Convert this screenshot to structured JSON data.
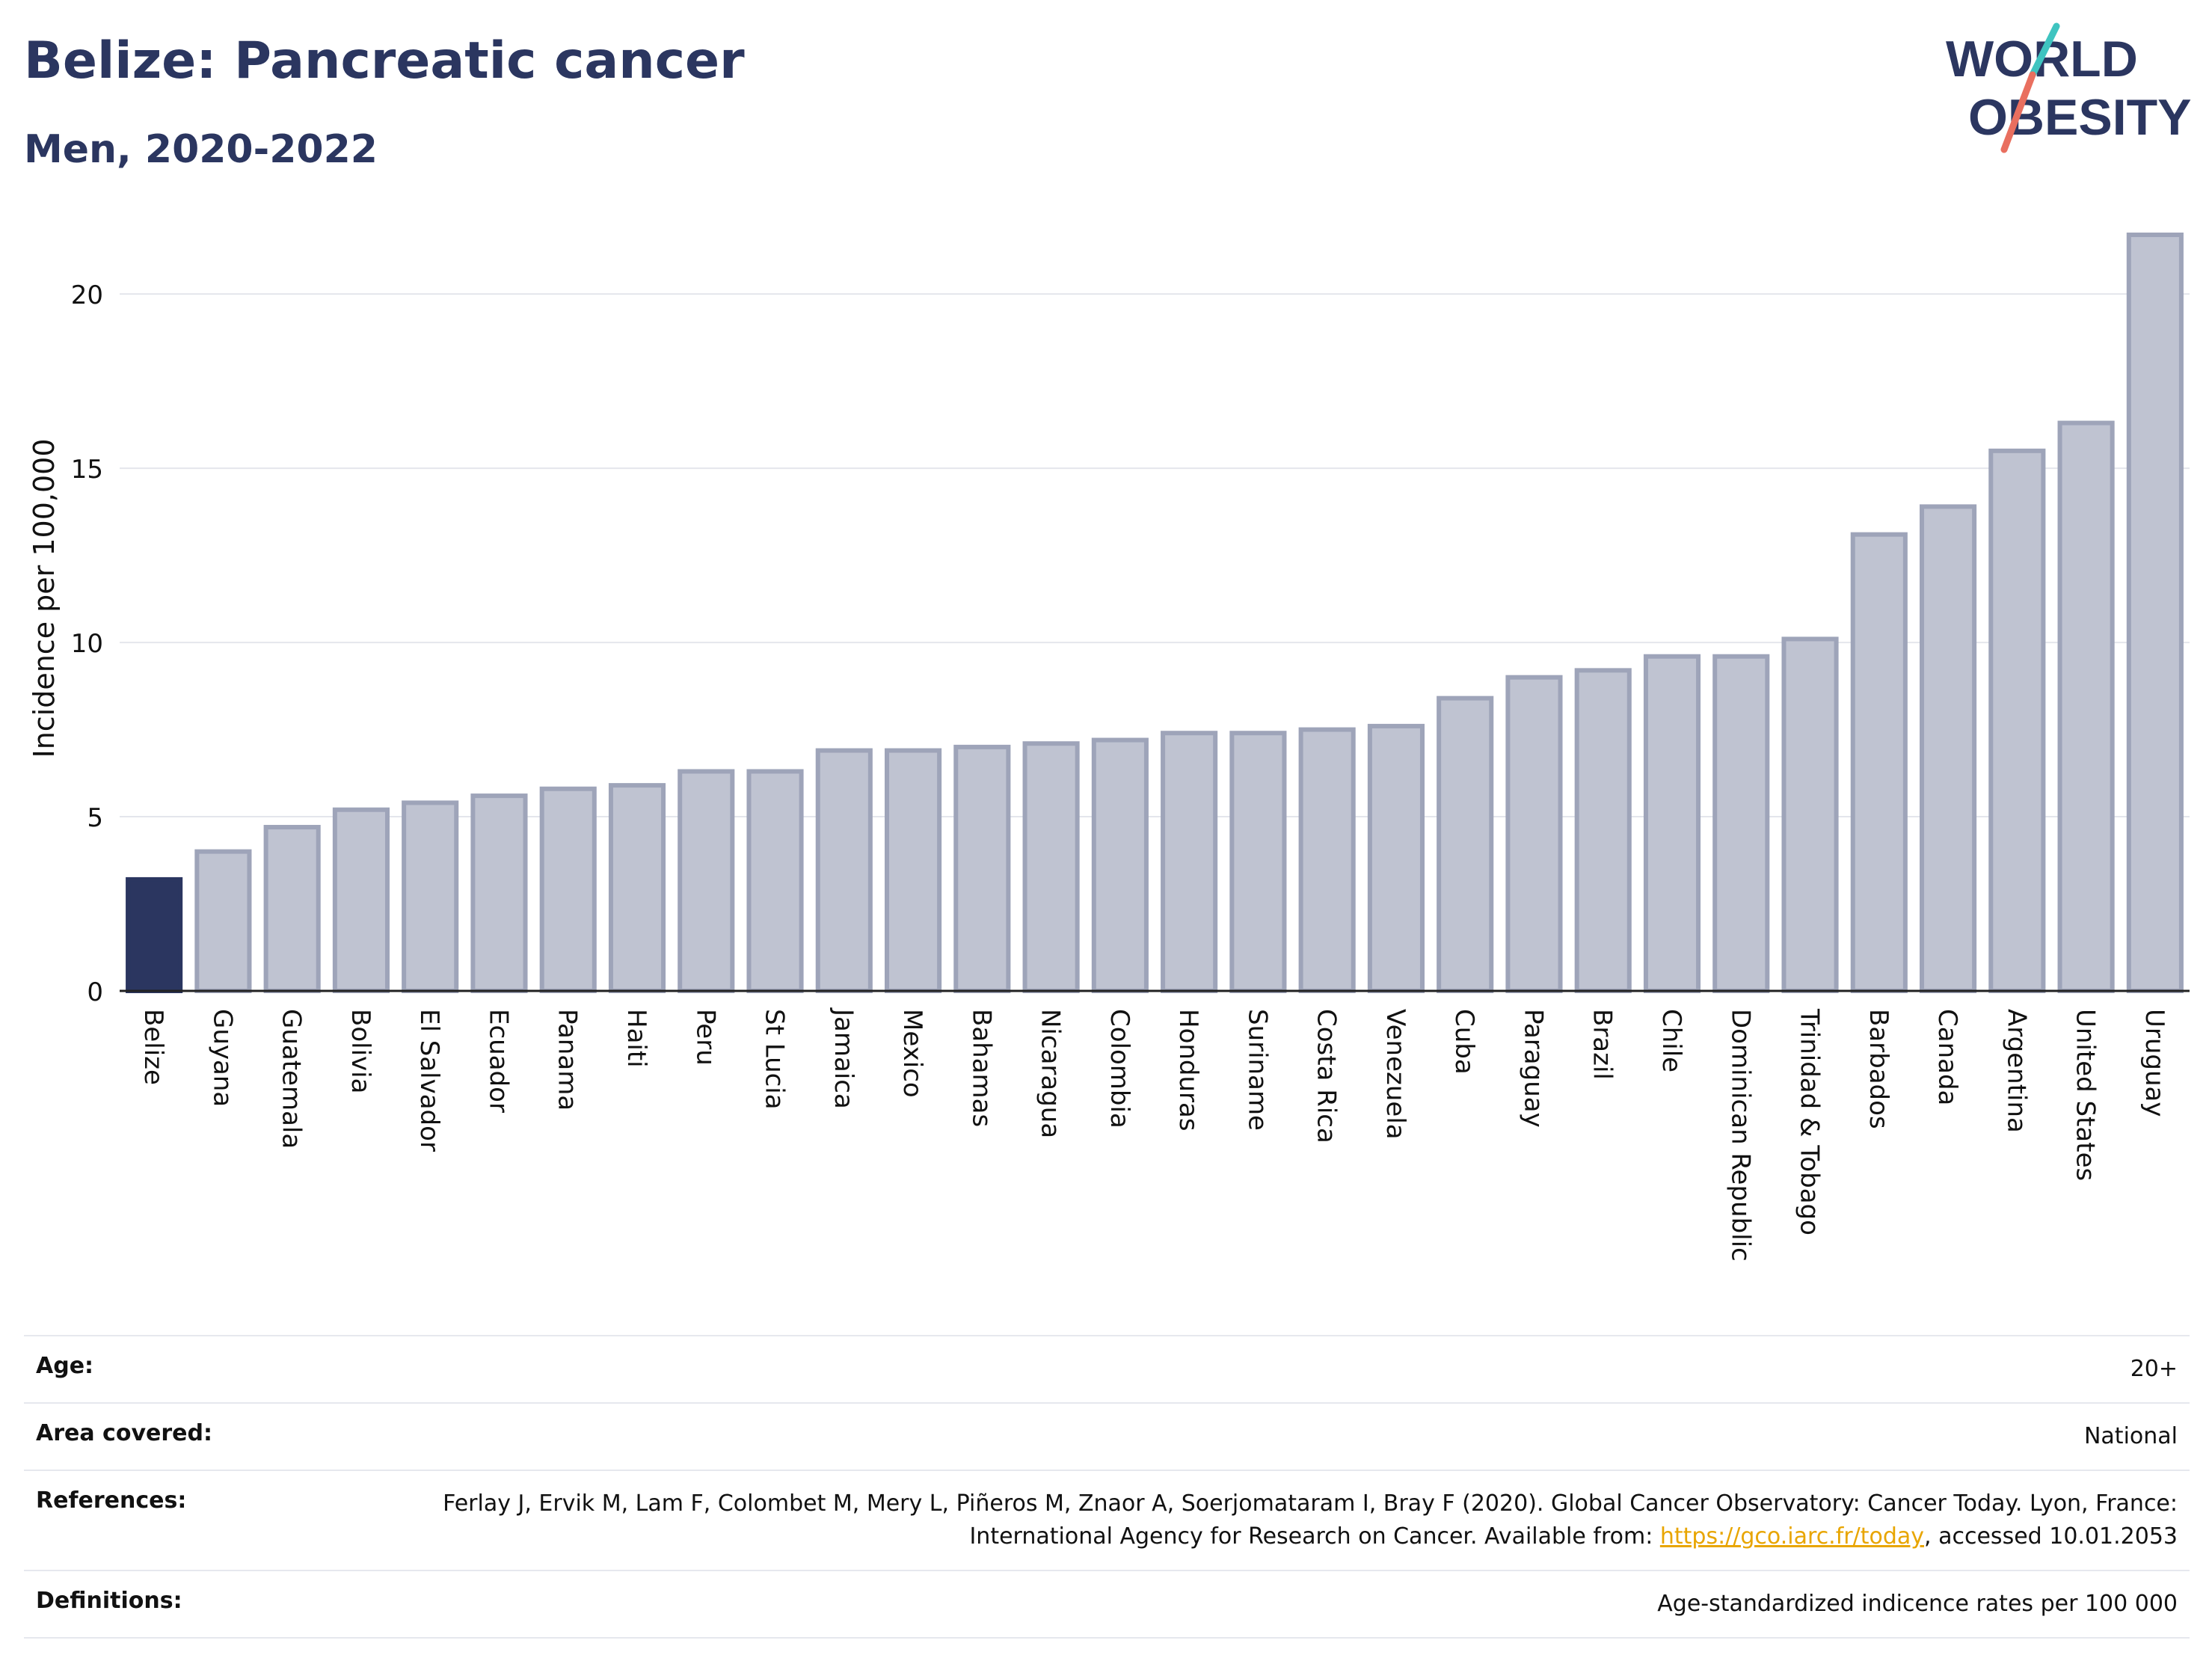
{
  "title": "Belize: Pancreatic cancer",
  "subtitle": "Men, 2020-2022",
  "logo": {
    "line1": "WORLD",
    "line2": "OBESITY"
  },
  "colors": {
    "highlight_bar": "#2b3660",
    "bar": "#bfc3d1",
    "bar_stroke": "#9ea4b9",
    "title": "#2b3660",
    "logo_teal": "#3fc4c0",
    "logo_coral": "#e96f5f",
    "link": "#e8a500"
  },
  "chart_data": {
    "type": "bar",
    "ylabel": "Incidence per 100,000",
    "ylim": [
      0,
      22
    ],
    "yticks": [
      0,
      5,
      10,
      15,
      20
    ],
    "highlight": "Belize",
    "grid": true,
    "categories": [
      "Belize",
      "Guyana",
      "Guatemala",
      "Bolivia",
      "El Salvador",
      "Ecuador",
      "Panama",
      "Haiti",
      "Peru",
      "St Lucia",
      "Jamaica",
      "Mexico",
      "Bahamas",
      "Nicaragua",
      "Colombia",
      "Honduras",
      "Suriname",
      "Costa Rica",
      "Venezuela",
      "Cuba",
      "Paraguay",
      "Brazil",
      "Chile",
      "Dominican Republic",
      "Trinidad & Tobago",
      "Barbados",
      "Canada",
      "Argentina",
      "United States",
      "Uruguay"
    ],
    "values": [
      3.2,
      4.0,
      4.7,
      5.2,
      5.4,
      5.6,
      5.8,
      5.9,
      6.3,
      6.3,
      6.9,
      6.9,
      7.0,
      7.1,
      7.2,
      7.4,
      7.4,
      7.5,
      7.6,
      8.4,
      9.0,
      9.2,
      9.6,
      9.6,
      10.1,
      13.1,
      13.9,
      15.5,
      16.3,
      21.7
    ]
  },
  "meta": {
    "age_label": "Age:",
    "age_value": "20+",
    "area_label": "Area covered:",
    "area_value": "National",
    "references_label": "References:",
    "references_text_1": "Ferlay J, Ervik M, Lam F, Colombet M, Mery L, Piñeros M, Znaor A, Soerjomataram I, Bray F (2020). Global Cancer Observatory: Cancer Today. Lyon, France: International Agency for Research on Cancer. Available from: ",
    "references_link": "https://gco.iarc.fr/today",
    "references_text_2": ", accessed 10.01.2053",
    "definitions_label": "Definitions:",
    "definitions_value": "Age-standardized indicence rates per 100 000"
  }
}
